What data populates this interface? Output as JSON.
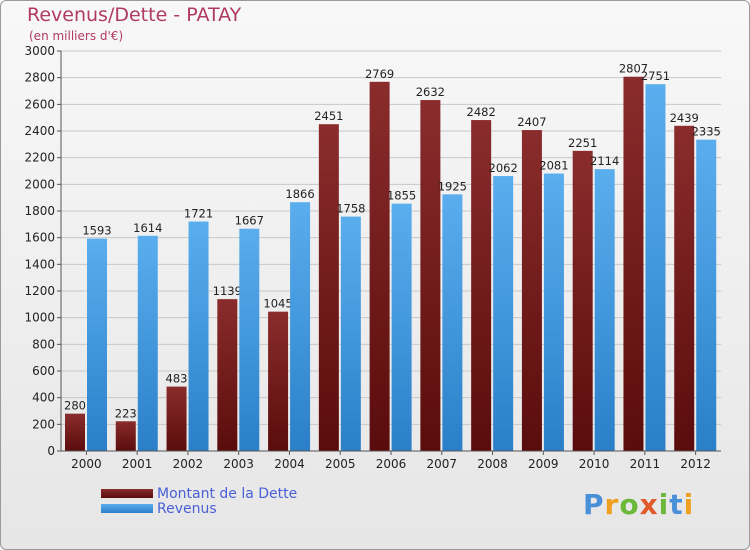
{
  "title": "Revenus/Dette - PATAY",
  "subtitle": "(en milliers d'€)",
  "logo": "Proxiti",
  "colors": {
    "dette": "#7e1e1e",
    "revenus": "#3f9be3",
    "title": "#b03a62",
    "legend_text": "#4a5fd6"
  },
  "chart_data": {
    "type": "bar",
    "categories": [
      "2000",
      "2001",
      "2002",
      "2003",
      "2004",
      "2005",
      "2006",
      "2007",
      "2008",
      "2009",
      "2010",
      "2011",
      "2012"
    ],
    "series": [
      {
        "name": "Montant de la Dette",
        "values": [
          280,
          223,
          483,
          1139,
          1045,
          2451,
          2769,
          2632,
          2482,
          2407,
          2251,
          2807,
          2439
        ]
      },
      {
        "name": "Revenus",
        "values": [
          1593,
          1614,
          1721,
          1667,
          1866,
          1758,
          1855,
          1925,
          2062,
          2081,
          2114,
          2751,
          2335
        ]
      }
    ],
    "ylim": [
      0,
      3000
    ],
    "yticks": [
      0,
      200,
      400,
      600,
      800,
      1000,
      1200,
      1400,
      1600,
      1800,
      2000,
      2200,
      2400,
      2600,
      2800,
      3000
    ],
    "grid": true,
    "legend_position": "bottom-left"
  }
}
